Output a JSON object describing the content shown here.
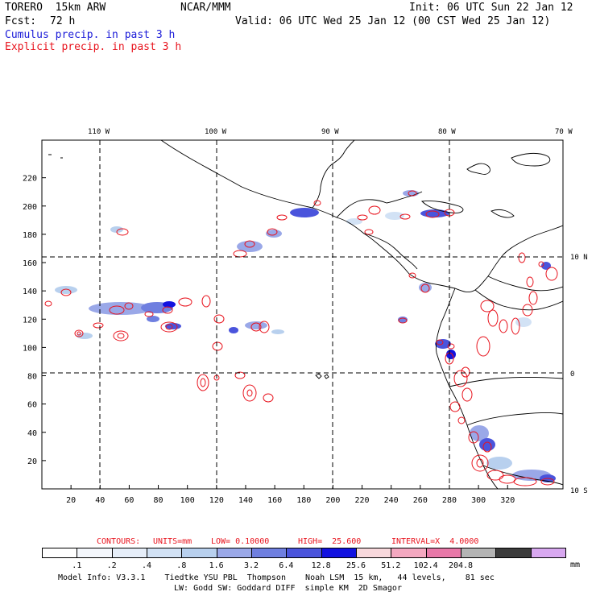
{
  "header": {
    "model": "TORERO  15km ARW",
    "org": "NCAR/MMM",
    "init": "Init: 06 UTC Sun 22 Jan 12",
    "fcst_label": "Fcst:",
    "fcst_value": "72 h",
    "valid": "Valid: 06 UTC Wed 25 Jan 12 (00 CST Wed 25 Jan 12)",
    "cumulus": "Cumulus precip. in past 3 h",
    "explicit": "Explicit precip. in past 3 h"
  },
  "colors": {
    "cumulus": "#1a1ad8",
    "explicit": "#e8141e",
    "land": "#000000"
  },
  "map": {
    "x_ticks": [
      "20",
      "40",
      "60",
      "80",
      "100",
      "120",
      "140",
      "160",
      "180",
      "200",
      "220",
      "240",
      "260",
      "280",
      "300",
      "320"
    ],
    "y_ticks": [
      "20",
      "40",
      "60",
      "80",
      "100",
      "120",
      "140",
      "160",
      "180",
      "200",
      "220"
    ],
    "lon_labels": [
      "110 W",
      "100 W",
      "90 W",
      "80 W",
      "70 W"
    ],
    "lat_labels": [
      "10 N",
      "0",
      "10 S"
    ]
  },
  "footer": {
    "contours_label": "CONTOURS:",
    "units": "UNITS=mm",
    "low": "LOW= 0.10000",
    "high": "HIGH=  25.600",
    "interval": "INTERVAL=X  4.0000",
    "colorbar": {
      "colors": [
        "#ffffff",
        "#f4f7fc",
        "#e6eef9",
        "#d2e2f5",
        "#b8d0ee",
        "#9aa8e8",
        "#6f7fe0",
        "#4a54dc",
        "#1212e0",
        "#f8d8dc",
        "#f4a8c0",
        "#e878a8",
        "#b4b4b4",
        "#3c3c3c",
        "#d8a8f0"
      ],
      "labels": [
        ".1",
        ".2",
        ".4",
        ".8",
        "1.6",
        "3.2",
        "6.4",
        "12.8",
        "25.6",
        "51.2",
        "102.4",
        "204.8"
      ],
      "unit": "mm"
    },
    "model_info_1": "Model Info: V3.3.1    Tiedtke YSU PBL  Thompson    Noah LSM  15 km,   44 levels,    81 sec",
    "model_info_2": "LW: Godd SW: Goddard DIFF  simple KM  2D Smagor"
  }
}
